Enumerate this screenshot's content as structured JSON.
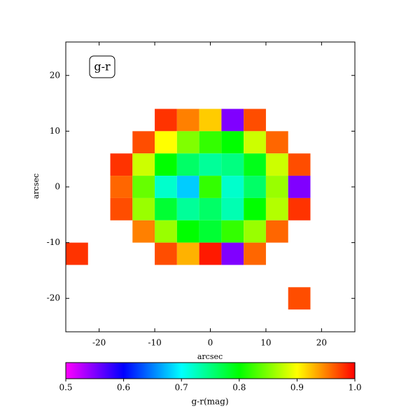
{
  "chart_data": {
    "type": "heatmap",
    "annotation": "g-r",
    "xlabel": "arcsec",
    "ylabel": "arcsec",
    "xlim": [
      -26,
      26
    ],
    "ylim": [
      -26,
      26
    ],
    "xticks": [
      -20,
      -10,
      0,
      10,
      20
    ],
    "yticks": [
      -20,
      -10,
      0,
      10,
      20
    ],
    "x": [
      -24,
      -20,
      -16,
      -12,
      -8,
      -4,
      0,
      4,
      8,
      12,
      16,
      20,
      24
    ],
    "y": [
      24,
      20,
      16,
      12,
      8,
      4,
      0,
      -4,
      -8,
      -12,
      -16,
      -20,
      -24
    ],
    "values": [
      [
        null,
        null,
        null,
        null,
        null,
        null,
        null,
        null,
        null,
        null,
        null,
        null,
        null
      ],
      [
        null,
        null,
        null,
        null,
        null,
        null,
        null,
        null,
        null,
        null,
        null,
        null,
        null
      ],
      [
        null,
        null,
        null,
        null,
        null,
        null,
        null,
        null,
        null,
        null,
        null,
        null,
        null
      ],
      [
        null,
        null,
        null,
        null,
        0.98,
        0.95,
        0.92,
        0.55,
        0.97,
        null,
        null,
        null,
        null
      ],
      [
        null,
        null,
        null,
        0.97,
        0.9,
        0.85,
        0.82,
        0.8,
        0.88,
        0.96,
        null,
        null,
        null
      ],
      [
        null,
        null,
        0.98,
        0.88,
        0.8,
        0.76,
        0.74,
        0.75,
        0.79,
        0.88,
        0.97,
        null,
        null
      ],
      [
        null,
        null,
        0.96,
        0.84,
        0.72,
        0.68,
        0.82,
        0.72,
        0.76,
        0.86,
        0.55,
        null,
        null
      ],
      [
        null,
        null,
        0.97,
        0.86,
        0.78,
        0.74,
        0.76,
        0.73,
        0.8,
        0.87,
        0.98,
        null,
        null
      ],
      [
        null,
        null,
        null,
        0.95,
        0.86,
        0.8,
        0.78,
        0.82,
        0.86,
        0.96,
        null,
        null,
        null
      ],
      [
        0.98,
        null,
        null,
        null,
        0.97,
        0.93,
        0.99,
        0.55,
        0.96,
        null,
        null,
        null,
        null
      ],
      [
        null,
        null,
        null,
        null,
        null,
        null,
        null,
        null,
        null,
        null,
        null,
        null,
        null
      ],
      [
        null,
        null,
        null,
        null,
        null,
        null,
        null,
        null,
        null,
        null,
        0.97,
        null,
        null
      ],
      [
        null,
        null,
        null,
        null,
        null,
        null,
        null,
        null,
        null,
        null,
        null,
        null,
        null
      ]
    ],
    "colorbar": {
      "label": "g-r(mag)",
      "lim": [
        0.5,
        1
      ],
      "ticks": [
        0.5,
        0.6,
        0.7,
        0.8,
        0.9,
        {
          "value": 1,
          "label": "1.0"
        }
      ]
    }
  }
}
